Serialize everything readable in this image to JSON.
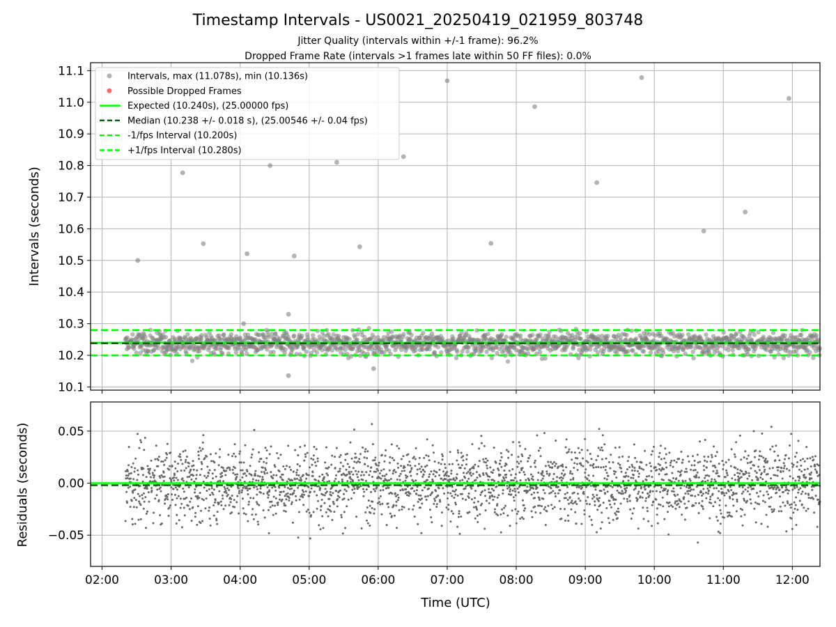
{
  "title": "Timestamp Intervals - US0021_20250419_021959_803748",
  "subtitle1": "Jitter Quality (intervals within +/-1 frame): 96.2%",
  "subtitle2": "Dropped Frame Rate (intervals >1 frames late within 50 FF files): 0.0%",
  "colors": {
    "points": "#808080",
    "dropped": "#ff0000",
    "expected": "#00ff00",
    "median": "#006400",
    "interval_lines": "#00ff00",
    "grid": "#b0b0b0"
  },
  "chart_data": [
    {
      "type": "scatter",
      "ylabel": "Intervals (seconds)",
      "xlim": [
        "01:50",
        "12:24"
      ],
      "ylim": [
        10.09,
        11.125
      ],
      "yticks": [
        "10.1",
        "10.2",
        "10.3",
        "10.4",
        "10.5",
        "10.6",
        "10.7",
        "10.8",
        "10.9",
        "11.0",
        "11.1"
      ],
      "grid": true,
      "legend_position": "top-left",
      "legend": [
        {
          "label": "Intervals, max (11.078s), min (10.136s)",
          "kind": "marker",
          "color": "#808080"
        },
        {
          "label": "Possible Dropped Frames",
          "kind": "marker",
          "color": "#ff0000"
        },
        {
          "label": "Expected (10.240s), (25.00000 fps)",
          "kind": "solid",
          "color": "#00ff00"
        },
        {
          "label": "Median (10.238 +/- 0.018 s), (25.00546 +/- 0.04 fps)",
          "kind": "dashed",
          "color": "#006400"
        },
        {
          "label": "-1/fps Interval (10.200s)",
          "kind": "dashed",
          "color": "#00ff00"
        },
        {
          "label": "+1/fps Interval (10.280s)",
          "kind": "dashed",
          "color": "#00ff00"
        }
      ],
      "hlines": [
        {
          "name": "expected",
          "y": 10.24,
          "style": "solid",
          "color": "#00ff00"
        },
        {
          "name": "median",
          "y": 10.238,
          "style": "dashed",
          "color": "#006400"
        },
        {
          "name": "minus-1fps",
          "y": 10.2,
          "style": "dashed",
          "color": "#00ff00"
        },
        {
          "name": "plus-1fps",
          "y": 10.28,
          "style": "dashed",
          "color": "#00ff00"
        }
      ],
      "data_start": "02:20",
      "data_end": "12:24",
      "band_center": 10.238,
      "band_spread": 0.018,
      "outliers": [
        {
          "x": "02:31",
          "y": 10.5
        },
        {
          "x": "03:10",
          "y": 10.777
        },
        {
          "x": "03:28",
          "y": 10.553
        },
        {
          "x": "04:03",
          "y": 10.3
        },
        {
          "x": "04:06",
          "y": 10.521
        },
        {
          "x": "04:26",
          "y": 10.8
        },
        {
          "x": "04:42",
          "y": 10.136
        },
        {
          "x": "04:42",
          "y": 10.33
        },
        {
          "x": "04:47",
          "y": 10.514
        },
        {
          "x": "05:24",
          "y": 10.81
        },
        {
          "x": "05:44",
          "y": 10.543
        },
        {
          "x": "05:56",
          "y": 10.158
        },
        {
          "x": "06:22",
          "y": 10.828
        },
        {
          "x": "07:00",
          "y": 11.068
        },
        {
          "x": "07:38",
          "y": 10.554
        },
        {
          "x": "08:16",
          "y": 10.986
        },
        {
          "x": "09:10",
          "y": 10.746
        },
        {
          "x": "09:49",
          "y": 11.078
        },
        {
          "x": "10:43",
          "y": 10.593
        },
        {
          "x": "11:19",
          "y": 10.653
        },
        {
          "x": "11:57",
          "y": 11.012
        }
      ]
    },
    {
      "type": "scatter",
      "ylabel": "Residuals (seconds)",
      "xlabel": "Time (UTC)",
      "xlim": [
        "01:50",
        "12:24"
      ],
      "ylim": [
        -0.08,
        0.078
      ],
      "yticks": [
        "−0.05",
        "0.00",
        "0.05"
      ],
      "ytick_values": [
        -0.05,
        0.0,
        0.05
      ],
      "xticks": [
        "02:00",
        "03:00",
        "04:00",
        "05:00",
        "06:00",
        "07:00",
        "08:00",
        "09:00",
        "10:00",
        "11:00",
        "12:00"
      ],
      "grid": true,
      "hlines": [
        {
          "name": "zero",
          "y": 0.0,
          "style": "solid",
          "color": "#00ff00"
        },
        {
          "name": "median-residual",
          "y": -0.002,
          "style": "dashed",
          "color": "#006400"
        }
      ],
      "data_start": "02:20",
      "data_end": "12:24",
      "residual_spread": 0.018
    }
  ]
}
